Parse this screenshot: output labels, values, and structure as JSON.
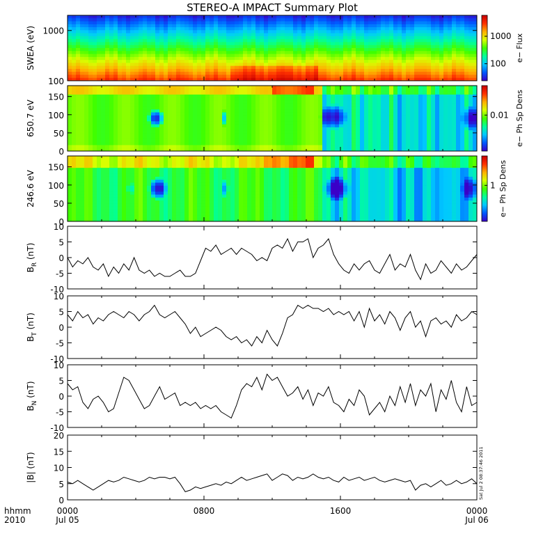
{
  "title": "STEREO-A IMPACT Summary Plot",
  "timestamp": "Sat Jul  2 08:37:46 2011",
  "time_axis": {
    "prefix_top": "hhmm",
    "prefix_bottom": "2010",
    "ticks": [
      {
        "top": "0000",
        "bottom": "Jul 05",
        "hours": 0
      },
      {
        "top": "0800",
        "bottom": "",
        "hours": 8
      },
      {
        "top": "1600",
        "bottom": "",
        "hours": 16
      },
      {
        "top": "0000",
        "bottom": "Jul 06",
        "hours": 24
      }
    ],
    "range_hours": [
      0,
      24
    ]
  },
  "colors": {
    "trace": "#000000",
    "colormap": [
      "#3a00c8",
      "#0058ff",
      "#00c8ff",
      "#00ff9a",
      "#40ff00",
      "#d8ff00",
      "#ffb000",
      "#ff3000",
      "#c80000"
    ]
  },
  "chart_data": [
    {
      "type": "heatmap",
      "ylabel": "SWEA (eV)",
      "yscale": "log",
      "ylim": [
        100,
        2000
      ],
      "yticks": [
        "1000",
        "100"
      ],
      "colorbar_label": "e− Flux",
      "colorbar_ticks": [
        "1000",
        "100"
      ]
    },
    {
      "type": "heatmap",
      "ylabel": "650.7 eV",
      "ylim": [
        0,
        180
      ],
      "yticks": [
        "150",
        "100",
        "50",
        "0"
      ],
      "colorbar_label": "e− Ph Sp Dens",
      "colorbar_ticks": [
        "0.01"
      ]
    },
    {
      "type": "heatmap",
      "ylabel": "246.6 eV",
      "ylim": [
        0,
        180
      ],
      "yticks": [
        "150",
        "100",
        "50",
        "0"
      ],
      "colorbar_label": "e− Ph Sp Dens",
      "colorbar_ticks": [
        "1"
      ]
    },
    {
      "type": "line",
      "ylabel": "B",
      "ylabel_sub": "R",
      "ylabel_unit": "(nT)",
      "ylim": [
        -10,
        10
      ],
      "yticks": [
        "10",
        "5",
        "0",
        "-5",
        "-10"
      ],
      "series": [
        {
          "x": [
            0,
            0.3,
            0.6,
            0.9,
            1.2,
            1.5,
            1.8,
            2.1,
            2.4,
            2.7,
            3.0,
            3.3,
            3.6,
            3.9,
            4.2,
            4.5,
            4.8,
            5.1,
            5.4,
            5.7,
            6.0,
            6.3,
            6.6,
            6.9,
            7.2,
            7.5,
            7.8,
            8.1,
            8.4,
            8.7,
            9.0,
            9.3,
            9.6,
            9.9,
            10.2,
            10.5,
            10.8,
            11.1,
            11.4,
            11.7,
            12.0,
            12.3,
            12.6,
            12.9,
            13.2,
            13.5,
            13.8,
            14.1,
            14.4,
            14.7,
            15.0,
            15.3,
            15.6,
            15.9,
            16.2,
            16.5,
            16.8,
            17.1,
            17.4,
            17.7,
            18.0,
            18.3,
            18.6,
            18.9,
            19.2,
            19.5,
            19.8,
            20.1,
            20.4,
            20.7,
            21.0,
            21.3,
            21.6,
            21.9,
            22.2,
            22.5,
            22.8,
            23.1,
            23.4,
            23.7,
            24.0
          ],
          "y": [
            0,
            -3,
            -1,
            -2,
            0,
            -3,
            -4,
            -2,
            -6,
            -3,
            -5,
            -2,
            -4,
            0,
            -4,
            -5,
            -4,
            -6,
            -5,
            -6,
            -6,
            -5,
            -4,
            -6,
            -6,
            -5,
            -1,
            3,
            2,
            4,
            1,
            2,
            3,
            1,
            3,
            2,
            1,
            -1,
            0,
            -1,
            3,
            4,
            3,
            6,
            2,
            5,
            5,
            6,
            0,
            3,
            4,
            6,
            1,
            -2,
            -4,
            -5,
            -2,
            -4,
            -2,
            -1,
            -4,
            -5,
            -2,
            1,
            -4,
            -2,
            -3,
            1,
            -4,
            -7,
            -2,
            -5,
            -4,
            -1,
            -3,
            -5,
            -2,
            -4,
            -3,
            -1,
            1
          ],
          "color": "#000000"
        }
      ]
    },
    {
      "type": "line",
      "ylabel": "B",
      "ylabel_sub": "T",
      "ylabel_unit": "(nT)",
      "ylim": [
        -10,
        10
      ],
      "yticks": [
        "10",
        "5",
        "0",
        "-5",
        "-10"
      ],
      "series": [
        {
          "x": [
            0,
            0.3,
            0.6,
            0.9,
            1.2,
            1.5,
            1.8,
            2.1,
            2.4,
            2.7,
            3.0,
            3.3,
            3.6,
            3.9,
            4.2,
            4.5,
            4.8,
            5.1,
            5.4,
            5.7,
            6.0,
            6.3,
            6.6,
            6.9,
            7.2,
            7.5,
            7.8,
            8.1,
            8.4,
            8.7,
            9.0,
            9.3,
            9.6,
            9.9,
            10.2,
            10.5,
            10.8,
            11.1,
            11.4,
            11.7,
            12.0,
            12.3,
            12.6,
            12.9,
            13.2,
            13.5,
            13.8,
            14.1,
            14.4,
            14.7,
            15.0,
            15.3,
            15.6,
            15.9,
            16.2,
            16.5,
            16.8,
            17.1,
            17.4,
            17.7,
            18.0,
            18.3,
            18.6,
            18.9,
            19.2,
            19.5,
            19.8,
            20.1,
            20.4,
            20.7,
            21.0,
            21.3,
            21.6,
            21.9,
            22.2,
            22.5,
            22.8,
            23.1,
            23.4,
            23.7,
            24.0
          ],
          "y": [
            4,
            2,
            5,
            3,
            4,
            1,
            3,
            2,
            4,
            5,
            4,
            3,
            5,
            4,
            2,
            4,
            5,
            7,
            4,
            3,
            4,
            5,
            3,
            1,
            -2,
            0,
            -3,
            -2,
            -1,
            0,
            -1,
            -3,
            -4,
            -3,
            -5,
            -4,
            -6,
            -3,
            -5,
            -1,
            -4,
            -6,
            -2,
            3,
            4,
            7,
            6,
            7,
            6,
            6,
            5,
            6,
            4,
            5,
            4,
            5,
            2,
            5,
            0,
            6,
            2,
            4,
            1,
            5,
            3,
            -1,
            3,
            5,
            0,
            2,
            -3,
            2,
            3,
            1,
            2,
            0,
            4,
            2,
            3,
            5,
            4
          ],
          "color": "#000000"
        }
      ]
    },
    {
      "type": "line",
      "ylabel": "B",
      "ylabel_sub": "N",
      "ylabel_unit": "(nT)",
      "ylim": [
        -10,
        10
      ],
      "yticks": [
        "10",
        "5",
        "0",
        "-5",
        "-10"
      ],
      "series": [
        {
          "x": [
            0,
            0.3,
            0.6,
            0.9,
            1.2,
            1.5,
            1.8,
            2.1,
            2.4,
            2.7,
            3.0,
            3.3,
            3.6,
            3.9,
            4.2,
            4.5,
            4.8,
            5.1,
            5.4,
            5.7,
            6.0,
            6.3,
            6.6,
            6.9,
            7.2,
            7.5,
            7.8,
            8.1,
            8.4,
            8.7,
            9.0,
            9.3,
            9.6,
            9.9,
            10.2,
            10.5,
            10.8,
            11.1,
            11.4,
            11.7,
            12.0,
            12.3,
            12.6,
            12.9,
            13.2,
            13.5,
            13.8,
            14.1,
            14.4,
            14.7,
            15.0,
            15.3,
            15.6,
            15.9,
            16.2,
            16.5,
            16.8,
            17.1,
            17.4,
            17.7,
            18.0,
            18.3,
            18.6,
            18.9,
            19.2,
            19.5,
            19.8,
            20.1,
            20.4,
            20.7,
            21.0,
            21.3,
            21.6,
            21.9,
            22.2,
            22.5,
            22.8,
            23.1,
            23.4,
            23.7,
            24.0
          ],
          "y": [
            4,
            2,
            3,
            -2,
            -4,
            -1,
            0,
            -2,
            -5,
            -4,
            1,
            6,
            5,
            2,
            -1,
            -4,
            -3,
            0,
            3,
            -1,
            0,
            1,
            -3,
            -2,
            -3,
            -2,
            -4,
            -3,
            -4,
            -3,
            -5,
            -6,
            -7,
            -3,
            2,
            4,
            3,
            6,
            2,
            7,
            5,
            6,
            3,
            0,
            1,
            3,
            -1,
            2,
            -3,
            1,
            0,
            3,
            -2,
            -3,
            -5,
            -1,
            -3,
            2,
            0,
            -6,
            -4,
            -2,
            -5,
            0,
            -3,
            3,
            -2,
            4,
            -3,
            2,
            0,
            4,
            -5,
            2,
            -1,
            5,
            -2,
            -5,
            3,
            -3,
            -2
          ],
          "color": "#000000"
        }
      ]
    },
    {
      "type": "line",
      "ylabel": "|B|",
      "ylabel_unit": "(nT)",
      "ylim": [
        0,
        20
      ],
      "yticks": [
        "20",
        "15",
        "10",
        "5",
        "0"
      ],
      "series": [
        {
          "x": [
            0,
            0.3,
            0.6,
            0.9,
            1.2,
            1.5,
            1.8,
            2.1,
            2.4,
            2.7,
            3.0,
            3.3,
            3.6,
            3.9,
            4.2,
            4.5,
            4.8,
            5.1,
            5.4,
            5.7,
            6.0,
            6.3,
            6.6,
            6.9,
            7.2,
            7.5,
            7.8,
            8.1,
            8.4,
            8.7,
            9.0,
            9.3,
            9.6,
            9.9,
            10.2,
            10.5,
            10.8,
            11.1,
            11.4,
            11.7,
            12.0,
            12.3,
            12.6,
            12.9,
            13.2,
            13.5,
            13.8,
            14.1,
            14.4,
            14.7,
            15.0,
            15.3,
            15.6,
            15.9,
            16.2,
            16.5,
            16.8,
            17.1,
            17.4,
            17.7,
            18.0,
            18.3,
            18.6,
            18.9,
            19.2,
            19.5,
            19.8,
            20.1,
            20.4,
            20.7,
            21.0,
            21.3,
            21.6,
            21.9,
            22.2,
            22.5,
            22.8,
            23.1,
            23.4,
            23.7,
            24.0
          ],
          "y": [
            5.5,
            5,
            6,
            5,
            4,
            3,
            4,
            5,
            6,
            5.5,
            6,
            7,
            6.5,
            6,
            5.5,
            6,
            7,
            6.5,
            7,
            7,
            6.5,
            7,
            5,
            2.5,
            3,
            4,
            3.5,
            4,
            4.5,
            5,
            4.5,
            5.5,
            5,
            6,
            7,
            6,
            6.5,
            7,
            7.5,
            8,
            6,
            7,
            8,
            7.5,
            6,
            7,
            6.5,
            7,
            8,
            7,
            6.5,
            7,
            6,
            5.5,
            7,
            6,
            6.5,
            7,
            6,
            6.5,
            7,
            6,
            5.5,
            6,
            6.5,
            6,
            5.5,
            6,
            3,
            4.5,
            5,
            4,
            5,
            6,
            4.5,
            5,
            6,
            5,
            5.5,
            6.5,
            5
          ],
          "color": "#000000"
        }
      ]
    }
  ]
}
